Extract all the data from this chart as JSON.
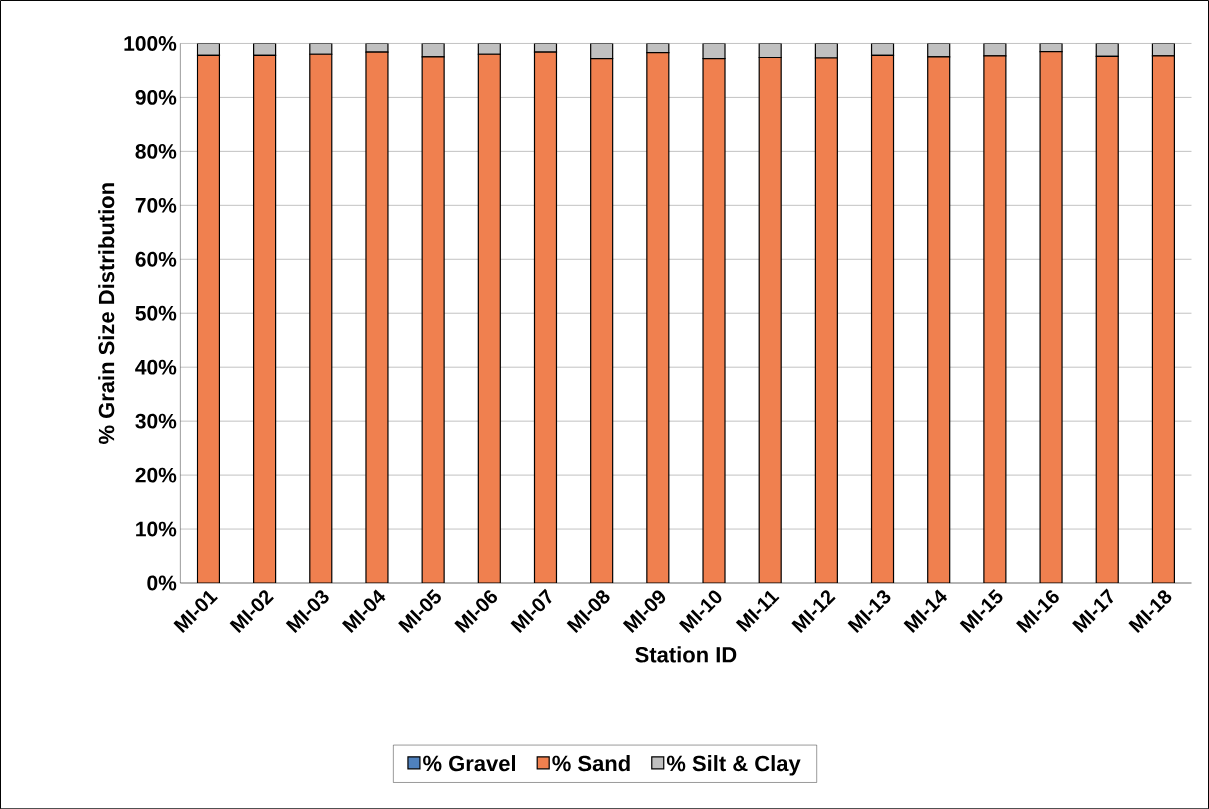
{
  "chart_data": {
    "type": "bar",
    "stacked": true,
    "xlabel": "Station ID",
    "ylabel": "% Grain Size Distribution",
    "categories": [
      "MI-01",
      "MI-02",
      "MI-03",
      "MI-04",
      "MI-05",
      "MI-06",
      "MI-07",
      "MI-08",
      "MI-09",
      "MI-10",
      "MI-11",
      "MI-12",
      "MI-13",
      "MI-14",
      "MI-15",
      "MI-16",
      "MI-17",
      "MI-18"
    ],
    "series": [
      {
        "name": "% Gravel",
        "color": "#4f81bd",
        "values": [
          0,
          0,
          0,
          0,
          0,
          0,
          0,
          0,
          0,
          0,
          0,
          0,
          0,
          0,
          0,
          0,
          0,
          0
        ]
      },
      {
        "name": "% Sand",
        "color": "#f0804f",
        "values": [
          97.8,
          97.8,
          98.0,
          98.4,
          97.5,
          98.0,
          98.4,
          97.2,
          98.3,
          97.2,
          97.4,
          97.3,
          97.8,
          97.5,
          97.7,
          98.5,
          97.6,
          97.7
        ]
      },
      {
        "name": "% Silt & Clay",
        "color": "#c0c0c0",
        "values": [
          2.2,
          2.2,
          2.0,
          1.6,
          2.5,
          2.0,
          1.6,
          2.8,
          1.7,
          2.8,
          2.6,
          2.7,
          2.2,
          2.5,
          2.3,
          1.5,
          2.4,
          2.3
        ]
      }
    ],
    "ylim": [
      0,
      100
    ],
    "yticks": [
      {
        "value": 0,
        "label": "0%"
      },
      {
        "value": 10,
        "label": "10%"
      },
      {
        "value": 20,
        "label": "20%"
      },
      {
        "value": 30,
        "label": "30%"
      },
      {
        "value": 40,
        "label": "40%"
      },
      {
        "value": 50,
        "label": "50%"
      },
      {
        "value": 60,
        "label": "60%"
      },
      {
        "value": 70,
        "label": "70%"
      },
      {
        "value": 80,
        "label": "80%"
      },
      {
        "value": 90,
        "label": "90%"
      },
      {
        "value": 100,
        "label": "100%"
      }
    ],
    "grid": "y",
    "legend": "bottom"
  }
}
